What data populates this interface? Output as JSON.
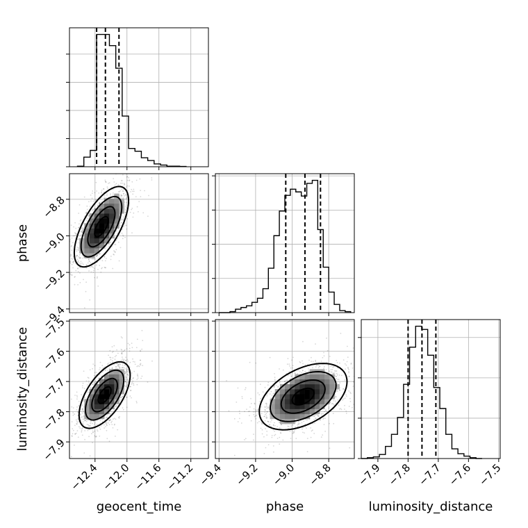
{
  "chart_data": {
    "type": "corner",
    "parameters": [
      "geocent_time",
      "phase",
      "luminosity_distance"
    ],
    "grid": true,
    "ranges": {
      "geocent_time": [
        -12.72,
        -10.98
      ],
      "phase": [
        -9.42,
        -8.66
      ],
      "luminosity_distance": [
        -7.955,
        -7.495
      ]
    },
    "tick_labels": {
      "geocent_time": [
        "−12.4",
        "−12.0",
        "−11.6",
        "−11.2"
      ],
      "phase": [
        "−9.4",
        "−9.2",
        "−9.0",
        "−8.8"
      ],
      "luminosity_distance": [
        "−7.9",
        "−7.8",
        "−7.7",
        "−7.6",
        "−7.5"
      ]
    },
    "tick_values": {
      "geocent_time": [
        -12.4,
        -12.0,
        -11.6,
        -11.2
      ],
      "phase": [
        -9.4,
        -9.2,
        -9.0,
        -8.8
      ],
      "luminosity_distance": [
        -7.9,
        -7.8,
        -7.7,
        -7.6,
        -7.5
      ]
    },
    "marginals": {
      "geocent_time": {
        "quantiles": [
          -12.38,
          -12.27,
          -12.1
        ],
        "bin_edges": [
          -12.62,
          -12.54,
          -12.46,
          -12.38,
          -12.3,
          -12.22,
          -12.14,
          -12.06,
          -11.98,
          -11.9,
          -11.82,
          -11.74,
          -11.66,
          -11.58,
          -11.5,
          -11.42,
          -11.34,
          -11.26
        ],
        "counts": [
          2,
          34,
          58,
          470,
          470,
          430,
          350,
          180,
          65,
          55,
          32,
          22,
          10,
          6,
          2,
          2,
          1
        ]
      },
      "phase": {
        "quantiles": [
          -9.035,
          -8.93,
          -8.845
        ],
        "bin_edges": [
          -9.4,
          -9.37,
          -9.34,
          -9.31,
          -9.28,
          -9.25,
          -9.22,
          -9.19,
          -9.16,
          -9.13,
          -9.1,
          -9.07,
          -9.04,
          -9.01,
          -8.98,
          -8.95,
          -8.92,
          -8.89,
          -8.86,
          -8.83,
          -8.8,
          -8.77,
          -8.74,
          -8.71,
          -8.68
        ],
        "counts": [
          0,
          0,
          3,
          10,
          15,
          20,
          30,
          42,
          70,
          130,
          225,
          297,
          343,
          361,
          353,
          341,
          378,
          387,
          243,
          133,
          60,
          24,
          6,
          3
        ]
      },
      "luminosity_distance": {
        "quantiles": [
          -7.8,
          -7.754,
          -7.708
        ],
        "bin_edges": [
          -7.955,
          -7.935,
          -7.915,
          -7.895,
          -7.875,
          -7.855,
          -7.835,
          -7.815,
          -7.795,
          -7.775,
          -7.755,
          -7.735,
          -7.715,
          -7.695,
          -7.675,
          -7.655,
          -7.635,
          -7.615,
          -7.595,
          -7.575,
          -7.555
        ],
        "counts": [
          0,
          1,
          2,
          5,
          15,
          30,
          51,
          92,
          138,
          164,
          160,
          128,
          88,
          62,
          30,
          12,
          6,
          3,
          1,
          0
        ]
      }
    },
    "joints": {
      "phase_vs_geocent_time": {
        "x": "geocent_time",
        "y": "phase",
        "center": [
          -12.32,
          -8.95
        ],
        "sigma": [
          0.17,
          0.11
        ],
        "correlation": 0.65,
        "contour_levels_sigma": [
          0.5,
          1.0,
          1.5,
          2.0
        ]
      },
      "luminosity_distance_vs_geocent_time": {
        "x": "geocent_time",
        "y": "luminosity_distance",
        "center": [
          -12.28,
          -7.745
        ],
        "sigma": [
          0.16,
          0.055
        ],
        "correlation": 0.6,
        "contour_levels_sigma": [
          0.5,
          1.0,
          1.5,
          2.0
        ]
      },
      "luminosity_distance_vs_phase": {
        "x": "phase",
        "y": "luminosity_distance",
        "center": [
          -8.94,
          -7.75
        ],
        "sigma": [
          0.12,
          0.055
        ],
        "correlation": 0.45,
        "contour_levels_sigma": [
          0.5,
          1.0,
          1.5,
          2.0
        ]
      }
    }
  }
}
